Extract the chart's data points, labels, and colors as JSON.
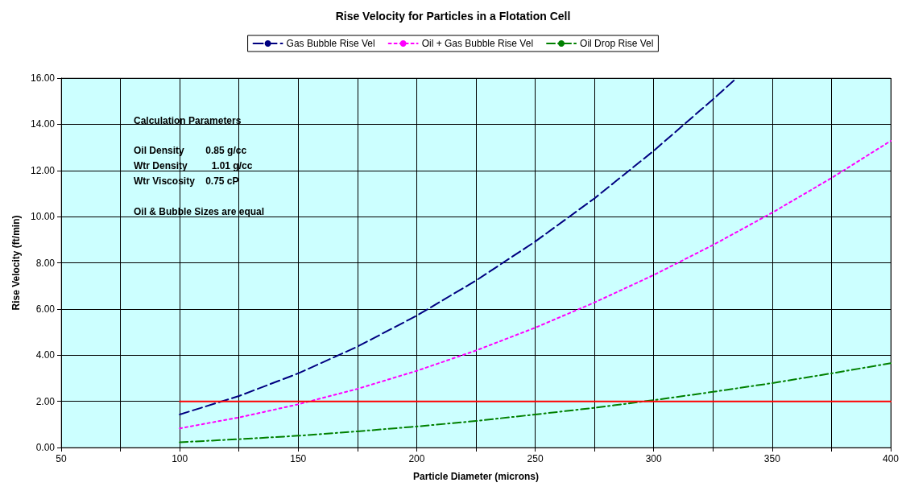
{
  "chart_data": {
    "type": "line",
    "title": "Rise Velocity for Particles in a Flotation Cell",
    "xlabel": "Particle Diameter (microns)",
    "ylabel": "Rise Velocity (ft/min)",
    "x": [
      100,
      125,
      150,
      175,
      200,
      225,
      250,
      275,
      300,
      325,
      350,
      375,
      400
    ],
    "series": [
      {
        "name": "Gas Bubble Rise Vel",
        "color": "#000080",
        "line_style": "dashed",
        "x": [
          100,
          125,
          150,
          175,
          200,
          225,
          250,
          275,
          300,
          325,
          335
        ],
        "values": [
          1.43,
          2.23,
          3.21,
          4.37,
          5.71,
          7.23,
          8.92,
          10.79,
          12.85,
          15.08,
          16.0
        ]
      },
      {
        "name": "Oil + Gas Bubble Rise Vel",
        "color": "#ff00ff",
        "line_style": "dotted",
        "values": [
          0.83,
          1.3,
          1.87,
          2.54,
          3.32,
          4.2,
          5.19,
          6.28,
          7.47,
          8.77,
          10.17,
          11.67,
          13.28
        ]
      },
      {
        "name": "Oil Drop Rise Vel",
        "color": "#008000",
        "line_style": "dashdot",
        "values": [
          0.23,
          0.36,
          0.51,
          0.7,
          0.91,
          1.15,
          1.43,
          1.72,
          2.05,
          2.41,
          2.79,
          3.21,
          3.65
        ]
      },
      {
        "color": "#ff0000",
        "line_style": "solid",
        "x": [
          100,
          400
        ],
        "values": [
          2,
          2
        ]
      }
    ],
    "xlim": [
      50,
      400
    ],
    "xticks": [
      50,
      {
        "value": 75,
        "label": null
      },
      100,
      {
        "value": 125,
        "label": null
      },
      150,
      {
        "value": 175,
        "label": null
      },
      200,
      {
        "value": 225,
        "label": null
      },
      250,
      {
        "value": 275,
        "label": null
      },
      300,
      {
        "value": 325,
        "label": null
      },
      350,
      {
        "value": 375,
        "label": null
      },
      400
    ],
    "ylim": [
      0,
      16
    ],
    "yticks": [
      {
        "value": 0,
        "label": "0.00"
      },
      {
        "value": 2,
        "label": "2.00"
      },
      {
        "value": 4,
        "label": "4.00"
      },
      {
        "value": 6,
        "label": "6.00"
      },
      {
        "value": 8,
        "label": "8.00"
      },
      {
        "value": 10,
        "label": "10.00"
      },
      {
        "value": 12,
        "label": "12.00"
      },
      {
        "value": 14,
        "label": "14.00"
      },
      {
        "value": 16,
        "label": "16.00"
      }
    ],
    "annotations": [
      "Calculation Parameters",
      "Oil Density        0.85 g/cc",
      "Wtr Density         1.01 g/cc",
      "Wtr Viscosity    0.75 cP",
      "Oil & Bubble Sizes are equal"
    ],
    "grid": true,
    "legend": "top",
    "marker": "none"
  }
}
